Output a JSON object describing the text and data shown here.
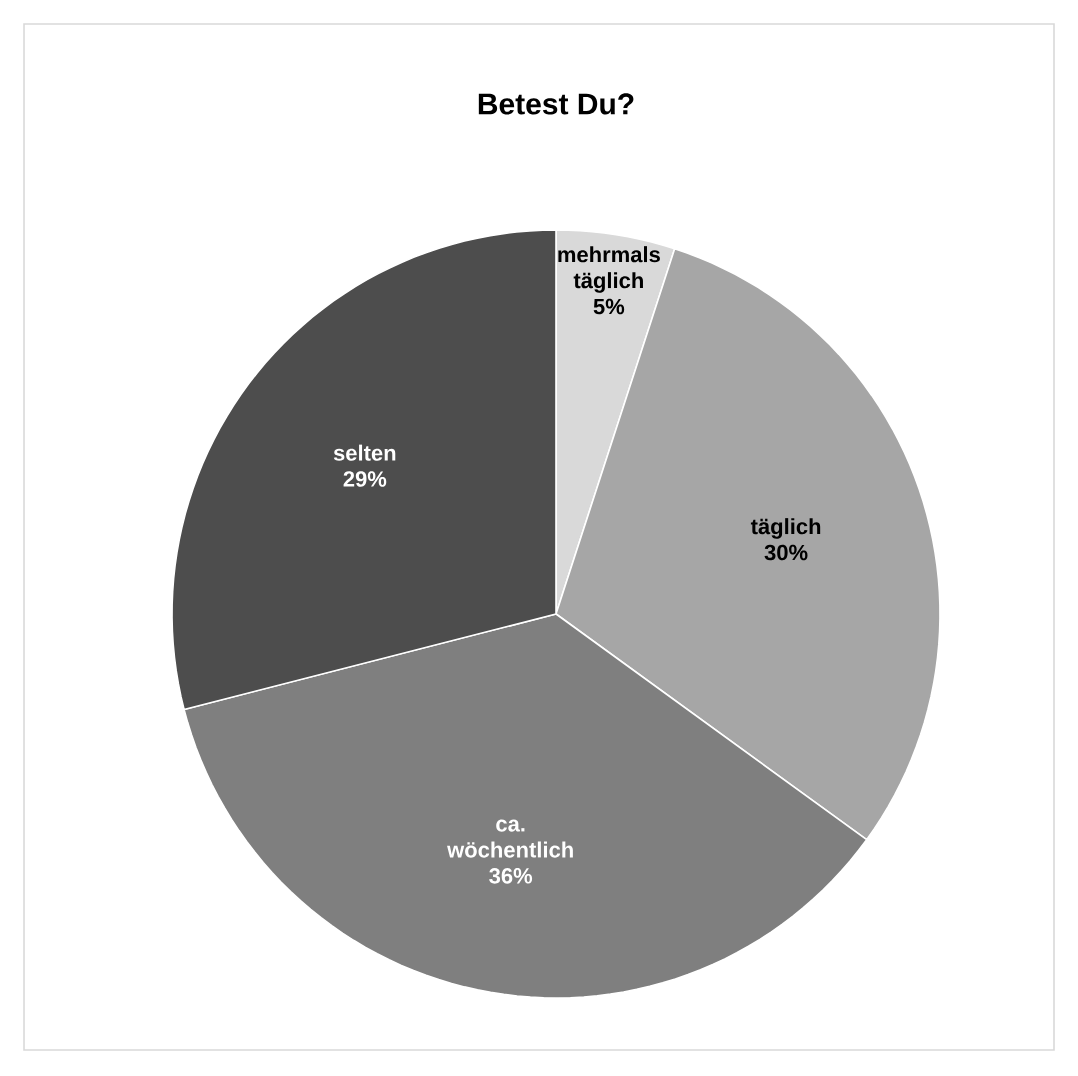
{
  "chart_data": {
    "type": "pie",
    "title": "Betest Du?",
    "categories": [
      "mehrmals täglich",
      "täglich",
      "ca. wöchentlich",
      "selten"
    ],
    "values": [
      5,
      30,
      36,
      29
    ],
    "value_labels": [
      "5%",
      "30%",
      "36%",
      "29%"
    ],
    "colors": [
      "#d9d9d9",
      "#a6a6a6",
      "#7f7f7f",
      "#4d4d4d"
    ]
  }
}
